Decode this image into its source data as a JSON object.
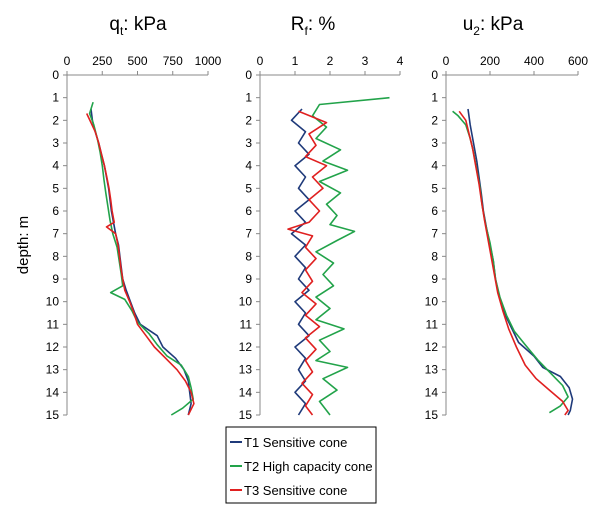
{
  "chart_data": [
    {
      "type": "line",
      "title_main": "q",
      "title_sub": "t",
      "title_rest": ": kPa",
      "ylabel": "depth: m",
      "ylim": [
        0,
        15
      ],
      "xlim": [
        0,
        1000
      ],
      "xticks": [
        0,
        250,
        500,
        750,
        1000
      ],
      "yticks": [
        0,
        1,
        2,
        3,
        4,
        5,
        6,
        7,
        8,
        9,
        10,
        11,
        12,
        13,
        14,
        15
      ],
      "y_inverted": true,
      "x_axis_position": "top",
      "series": [
        {
          "name": "T1 Sensitive cone",
          "color": "#1f3a7a",
          "points": [
            [
              170,
              1.5
            ],
            [
              180,
              2
            ],
            [
              200,
              2.5
            ],
            [
              225,
              3
            ],
            [
              245,
              3.5
            ],
            [
              265,
              4
            ],
            [
              280,
              4.5
            ],
            [
              295,
              5
            ],
            [
              305,
              5.5
            ],
            [
              315,
              6
            ],
            [
              330,
              6.5
            ],
            [
              345,
              7
            ],
            [
              365,
              7.5
            ],
            [
              375,
              8
            ],
            [
              385,
              8.5
            ],
            [
              395,
              9
            ],
            [
              420,
              9.5
            ],
            [
              450,
              10
            ],
            [
              480,
              10.5
            ],
            [
              520,
              11
            ],
            [
              640,
              11.5
            ],
            [
              680,
              12
            ],
            [
              770,
              12.5
            ],
            [
              830,
              13
            ],
            [
              860,
              13.5
            ],
            [
              870,
              14
            ],
            [
              880,
              14.5
            ],
            [
              860,
              15
            ]
          ]
        },
        {
          "name": "T2 High capacity cone",
          "color": "#22a34a",
          "points": [
            [
              185,
              1.2
            ],
            [
              160,
              1.7
            ],
            [
              190,
              2.2
            ],
            [
              215,
              2.8
            ],
            [
              235,
              3.4
            ],
            [
              250,
              4
            ],
            [
              262,
              4.6
            ],
            [
              275,
              5.2
            ],
            [
              290,
              5.8
            ],
            [
              305,
              6.4
            ],
            [
              325,
              7
            ],
            [
              355,
              7.6
            ],
            [
              370,
              8.2
            ],
            [
              385,
              8.8
            ],
            [
              395,
              9.3
            ],
            [
              310,
              9.6
            ],
            [
              410,
              9.9
            ],
            [
              460,
              10.4
            ],
            [
              500,
              10.9
            ],
            [
              580,
              11.4
            ],
            [
              640,
              11.9
            ],
            [
              710,
              12.4
            ],
            [
              810,
              12.8
            ],
            [
              860,
              13.3
            ],
            [
              880,
              13.8
            ],
            [
              895,
              14.3
            ],
            [
              820,
              14.7
            ],
            [
              740,
              15
            ]
          ]
        },
        {
          "name": "T3 Sensitive cone",
          "color": "#e02020",
          "points": [
            [
              140,
              1.7
            ],
            [
              170,
              2.1
            ],
            [
              200,
              2.5
            ],
            [
              225,
              3
            ],
            [
              245,
              3.5
            ],
            [
              265,
              4
            ],
            [
              282,
              4.5
            ],
            [
              298,
              5
            ],
            [
              310,
              5.5
            ],
            [
              320,
              6
            ],
            [
              335,
              6.5
            ],
            [
              280,
              6.7
            ],
            [
              345,
              7
            ],
            [
              362,
              7.5
            ],
            [
              372,
              8
            ],
            [
              382,
              8.5
            ],
            [
              395,
              9
            ],
            [
              410,
              9.5
            ],
            [
              445,
              10
            ],
            [
              475,
              10.5
            ],
            [
              500,
              11
            ],
            [
              560,
              11.5
            ],
            [
              620,
              12
            ],
            [
              700,
              12.5
            ],
            [
              780,
              13
            ],
            [
              840,
              13.5
            ],
            [
              880,
              14
            ],
            [
              900,
              14.5
            ],
            [
              860,
              15
            ]
          ]
        }
      ]
    },
    {
      "type": "line",
      "title_main": "R",
      "title_sub": "f",
      "title_rest": ": %",
      "ylim": [
        0,
        15
      ],
      "xlim": [
        0,
        4
      ],
      "xticks": [
        0,
        1,
        2,
        3,
        4
      ],
      "yticks": [
        0,
        1,
        2,
        3,
        4,
        5,
        6,
        7,
        8,
        9,
        10,
        11,
        12,
        13,
        14,
        15
      ],
      "y_inverted": true,
      "x_axis_position": "top",
      "series": [
        {
          "name": "T1 Sensitive cone",
          "color": "#1f3a7a",
          "points": [
            [
              1.2,
              1.5
            ],
            [
              0.9,
              2
            ],
            [
              1.3,
              2.5
            ],
            [
              1.1,
              3
            ],
            [
              1.4,
              3.5
            ],
            [
              1.0,
              4
            ],
            [
              1.3,
              4.5
            ],
            [
              1.1,
              5
            ],
            [
              1.4,
              5.5
            ],
            [
              1.0,
              6
            ],
            [
              1.3,
              6.5
            ],
            [
              0.9,
              7
            ],
            [
              1.3,
              7.5
            ],
            [
              1.0,
              8
            ],
            [
              1.3,
              8.5
            ],
            [
              1.1,
              9
            ],
            [
              1.4,
              9.5
            ],
            [
              1.0,
              10
            ],
            [
              1.3,
              10.5
            ],
            [
              1.1,
              11
            ],
            [
              1.4,
              11.5
            ],
            [
              1.0,
              12
            ],
            [
              1.3,
              12.5
            ],
            [
              1.1,
              13
            ],
            [
              1.3,
              13.5
            ],
            [
              1.0,
              14
            ],
            [
              1.3,
              14.5
            ],
            [
              1.1,
              15
            ]
          ]
        },
        {
          "name": "T2 High capacity cone",
          "color": "#22a34a",
          "points": [
            [
              3.7,
              1.0
            ],
            [
              1.7,
              1.3
            ],
            [
              1.5,
              1.8
            ],
            [
              1.9,
              2.3
            ],
            [
              1.6,
              2.8
            ],
            [
              2.3,
              3.3
            ],
            [
              1.8,
              3.8
            ],
            [
              2.5,
              4.2
            ],
            [
              1.7,
              4.7
            ],
            [
              2.3,
              5.2
            ],
            [
              1.9,
              5.7
            ],
            [
              2.2,
              6.2
            ],
            [
              2.0,
              6.6
            ],
            [
              2.7,
              6.9
            ],
            [
              2.2,
              7.3
            ],
            [
              1.6,
              7.8
            ],
            [
              2.1,
              8.3
            ],
            [
              1.8,
              8.8
            ],
            [
              2.1,
              9.3
            ],
            [
              1.6,
              9.8
            ],
            [
              2.0,
              10.3
            ],
            [
              1.6,
              10.8
            ],
            [
              2.4,
              11.2
            ],
            [
              1.7,
              11.7
            ],
            [
              2.0,
              12.2
            ],
            [
              1.6,
              12.6
            ],
            [
              2.5,
              12.9
            ],
            [
              1.8,
              13.4
            ],
            [
              2.2,
              13.9
            ],
            [
              1.7,
              14.4
            ],
            [
              2.0,
              15
            ]
          ]
        },
        {
          "name": "T3 Sensitive cone",
          "color": "#e02020",
          "points": [
            [
              1.1,
              1.6
            ],
            [
              1.9,
              2.1
            ],
            [
              1.4,
              2.6
            ],
            [
              1.6,
              3.1
            ],
            [
              1.3,
              3.6
            ],
            [
              1.9,
              4.0
            ],
            [
              1.5,
              4.5
            ],
            [
              1.8,
              5.0
            ],
            [
              1.4,
              5.5
            ],
            [
              1.7,
              6.0
            ],
            [
              1.4,
              6.5
            ],
            [
              0.8,
              6.8
            ],
            [
              1.5,
              7.1
            ],
            [
              1.3,
              7.6
            ],
            [
              1.6,
              8.1
            ],
            [
              1.3,
              8.6
            ],
            [
              1.5,
              9.1
            ],
            [
              1.2,
              9.6
            ],
            [
              1.6,
              10.1
            ],
            [
              1.3,
              10.6
            ],
            [
              1.7,
              11.1
            ],
            [
              1.3,
              11.6
            ],
            [
              1.6,
              12.1
            ],
            [
              1.3,
              12.6
            ],
            [
              1.5,
              13.1
            ],
            [
              1.2,
              13.6
            ],
            [
              1.5,
              14.1
            ],
            [
              1.3,
              14.6
            ],
            [
              1.5,
              15
            ]
          ]
        }
      ]
    },
    {
      "type": "line",
      "title_main": "u",
      "title_sub": "2",
      "title_rest": ": kPa",
      "ylim": [
        0,
        15
      ],
      "xlim": [
        0,
        600
      ],
      "xticks": [
        0,
        200,
        400,
        600
      ],
      "yticks": [
        0,
        1,
        2,
        3,
        4,
        5,
        6,
        7,
        8,
        9,
        10,
        11,
        12,
        13,
        14,
        15
      ],
      "y_inverted": true,
      "x_axis_position": "top",
      "series": [
        {
          "name": "T1 Sensitive cone",
          "color": "#1f3a7a",
          "points": [
            [
              100,
              1.5
            ],
            [
              110,
              2.2
            ],
            [
              125,
              3
            ],
            [
              140,
              3.8
            ],
            [
              150,
              4.5
            ],
            [
              160,
              5.2
            ],
            [
              170,
              6
            ],
            [
              185,
              6.8
            ],
            [
              200,
              7.5
            ],
            [
              215,
              8.2
            ],
            [
              225,
              9
            ],
            [
              240,
              9.7
            ],
            [
              265,
              10.5
            ],
            [
              300,
              11.2
            ],
            [
              330,
              11.8
            ],
            [
              400,
              12.4
            ],
            [
              440,
              12.9
            ],
            [
              520,
              13.3
            ],
            [
              560,
              13.8
            ],
            [
              575,
              14.3
            ],
            [
              565,
              14.8
            ],
            [
              555,
              15
            ]
          ]
        },
        {
          "name": "T2 High capacity cone",
          "color": "#22a34a",
          "points": [
            [
              30,
              1.6
            ],
            [
              55,
              1.8
            ],
            [
              90,
              2.2
            ],
            [
              110,
              2.8
            ],
            [
              125,
              3.4
            ],
            [
              140,
              4.2
            ],
            [
              155,
              5
            ],
            [
              165,
              5.8
            ],
            [
              180,
              6.6
            ],
            [
              200,
              7.4
            ],
            [
              215,
              8.2
            ],
            [
              225,
              9
            ],
            [
              245,
              9.8
            ],
            [
              275,
              10.6
            ],
            [
              310,
              11.3
            ],
            [
              360,
              11.9
            ],
            [
              420,
              12.6
            ],
            [
              480,
              13.2
            ],
            [
              530,
              13.7
            ],
            [
              555,
              14.2
            ],
            [
              520,
              14.6
            ],
            [
              470,
              14.9
            ]
          ]
        },
        {
          "name": "T3 Sensitive cone",
          "color": "#e02020",
          "points": [
            [
              60,
              1.6
            ],
            [
              90,
              2
            ],
            [
              105,
              2.6
            ],
            [
              120,
              3.2
            ],
            [
              135,
              4
            ],
            [
              150,
              4.8
            ],
            [
              162,
              5.6
            ],
            [
              175,
              6.4
            ],
            [
              190,
              7.2
            ],
            [
              205,
              8
            ],
            [
              220,
              8.8
            ],
            [
              235,
              9.6
            ],
            [
              258,
              10.4
            ],
            [
              285,
              11.2
            ],
            [
              320,
              12
            ],
            [
              360,
              12.8
            ],
            [
              410,
              13.4
            ],
            [
              470,
              13.9
            ],
            [
              530,
              14.4
            ],
            [
              555,
              14.8
            ],
            [
              540,
              15
            ]
          ]
        }
      ]
    }
  ],
  "legend": {
    "placement": "bottom-center",
    "items": [
      {
        "label": "T1 Sensitive cone",
        "color": "#1f3a7a"
      },
      {
        "label": "T2 High capacity cone",
        "color": "#22a34a"
      },
      {
        "label": "T3 Sensitive cone",
        "color": "#e02020"
      }
    ]
  },
  "grid": false
}
